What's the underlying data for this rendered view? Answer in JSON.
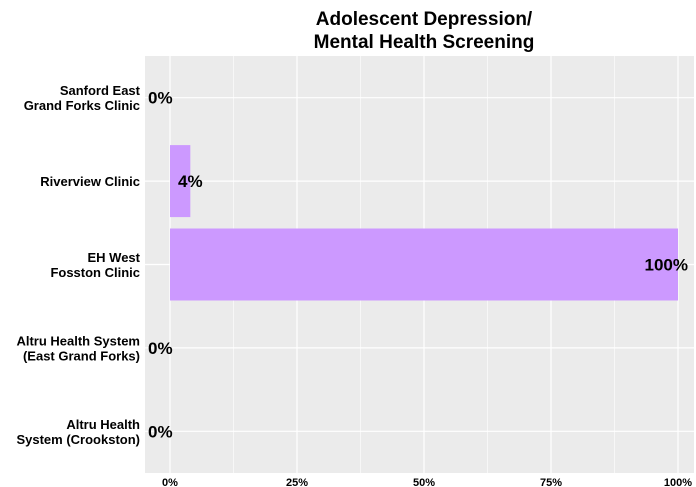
{
  "chart_data": {
    "type": "bar",
    "orientation": "horizontal",
    "title": [
      "Adolescent Depression/",
      "Mental Health Screening"
    ],
    "xlabel": "",
    "ylabel": "",
    "categories": [
      [
        "Sanford East",
        "Grand Forks Clinic"
      ],
      [
        "Riverview Clinic"
      ],
      [
        "EH West",
        "Fosston Clinic"
      ],
      [
        "Altru Health System",
        "(East Grand Forks)"
      ],
      [
        "Altru Health",
        "System (Crookston)"
      ]
    ],
    "values": [
      0,
      4,
      100,
      0,
      0
    ],
    "data_labels": [
      "0%",
      "4%",
      "100%",
      "0%",
      "0%"
    ],
    "x_ticks": [
      0,
      25,
      50,
      75,
      100
    ],
    "x_tick_labels": [
      "0%",
      "25%",
      "50%",
      "75%",
      "100%"
    ],
    "xlim": [
      0,
      100
    ],
    "grid": true,
    "legend": "none",
    "colors": {
      "bar": "#cc99ff",
      "panel": "#ebebeb",
      "gridline": "#ffffff"
    }
  }
}
